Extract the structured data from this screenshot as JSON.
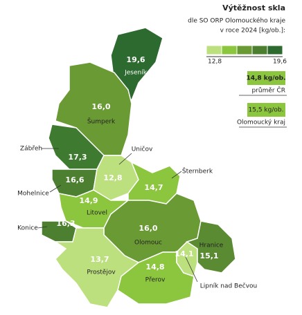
{
  "title": "Výtěžnost skla",
  "subtitle": [
    "dle SO ORP Olomouckého kraje",
    "v roce 2024 [kg/ob.]:"
  ],
  "scale": {
    "min_label": "12,8",
    "max_label": "19,6",
    "colors": [
      "#bde07f",
      "#8cc63f",
      "#6a9a34",
      "#4c7f2f",
      "#2d6a2f"
    ]
  },
  "reference": [
    {
      "value_label": "14,8 kg/ob.",
      "name": "průměr ČR",
      "color": "#8cc63f"
    },
    {
      "value_label": "15,5 kg/ob.",
      "name": "Olomoucký kraj",
      "color": "#8cc63f"
    }
  ],
  "regions": [
    {
      "name": "Jeseník",
      "value": 19.6,
      "value_label": "19,6",
      "color": "#2d6a2f"
    },
    {
      "name": "Šumperk",
      "value": 16.0,
      "value_label": "16,0",
      "color": "#6a9a34"
    },
    {
      "name": "Zábřeh",
      "value": 17.3,
      "value_label": "17,3",
      "color": "#3e7a30"
    },
    {
      "name": "Mohelnice",
      "value": 16.6,
      "value_label": "16,6",
      "color": "#4c7f2f"
    },
    {
      "name": "Uničov",
      "value": 12.8,
      "value_label": "12,8",
      "color": "#bde07f"
    },
    {
      "name": "Šternberk",
      "value": 14.7,
      "value_label": "14,7",
      "color": "#8cc63f"
    },
    {
      "name": "Litovel",
      "value": 14.9,
      "value_label": "14,9",
      "color": "#8cc63f"
    },
    {
      "name": "Konice",
      "value": 16.3,
      "value_label": "16,3",
      "color": "#4c7f2f"
    },
    {
      "name": "Olomouc",
      "value": 16.0,
      "value_label": "16,0",
      "color": "#6a9a34"
    },
    {
      "name": "Prostějov",
      "value": 13.7,
      "value_label": "13,7",
      "color": "#bde07f"
    },
    {
      "name": "Přerov",
      "value": 14.8,
      "value_label": "14,8",
      "color": "#8cc63f"
    },
    {
      "name": "Lipník nad Bečvou",
      "value": 14.1,
      "value_label": "14,1",
      "color": "#bde07f"
    },
    {
      "name": "Hranice",
      "value": 15.1,
      "value_label": "15,1",
      "color": "#5a8a32"
    }
  ]
}
